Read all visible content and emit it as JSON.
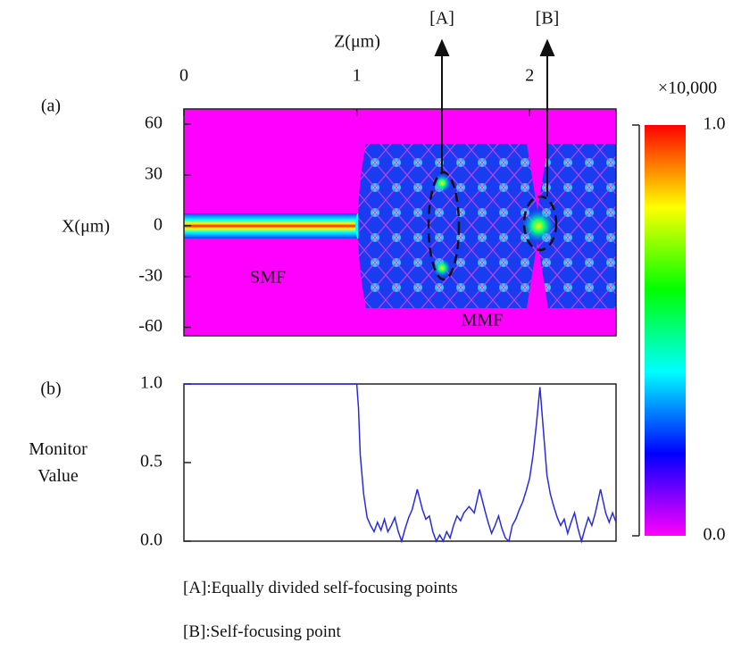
{
  "chart_data": [
    {
      "type": "heatmap",
      "panel_label": "(a)",
      "xlabel": "Z(μm)",
      "ylabel": "X(μm)",
      "xlim": [
        0,
        2.5
      ],
      "xticks": [
        0,
        1,
        2
      ],
      "ylim": [
        -65,
        69
      ],
      "yticks": [
        60,
        30,
        0,
        -30,
        -60
      ],
      "annotations": [
        "[A]",
        "[B]",
        "SMF",
        "MMF"
      ],
      "colorbar": {
        "label": "×10,000",
        "lim": [
          0,
          1
        ],
        "ticks": [
          {
            "value": 1,
            "label": "1.0"
          },
          {
            "value": 0,
            "label": "0.0"
          }
        ],
        "colors": [
          "#ff00ff",
          "#0000ff",
          "#00ffff",
          "#00ff00",
          "#ffff00",
          "#ff0000"
        ]
      }
    },
    {
      "type": "line",
      "panel_label": "(b)",
      "ylabel": "Monitor Value",
      "color": "#2a2ae0",
      "xlim": [
        0,
        2.5
      ],
      "ylim": [
        0,
        1
      ],
      "yticks": [
        {
          "value": 1,
          "label": "1.0"
        },
        0.5,
        {
          "value": 0,
          "label": "0.0"
        }
      ],
      "x": [
        0,
        1,
        1.01,
        1.02,
        1.04,
        1.06,
        1.08,
        1.1,
        1.12,
        1.14,
        1.16,
        1.18,
        1.2,
        1.22,
        1.24,
        1.26,
        1.28,
        1.3,
        1.32,
        1.35,
        1.38,
        1.4,
        1.42,
        1.44,
        1.46,
        1.48,
        1.5,
        1.52,
        1.54,
        1.56,
        1.58,
        1.6,
        1.62,
        1.65,
        1.68,
        1.71,
        1.74,
        1.76,
        1.78,
        1.8,
        1.82,
        1.84,
        1.86,
        1.88,
        1.9,
        1.92,
        1.94,
        1.96,
        1.98,
        2.0,
        2.02,
        2.04,
        2.06,
        2.08,
        2.1,
        2.12,
        2.14,
        2.16,
        2.18,
        2.2,
        2.22,
        2.24,
        2.26,
        2.28,
        2.3,
        2.32,
        2.34,
        2.36,
        2.38,
        2.41,
        2.44,
        2.46,
        2.48,
        2.5
      ],
      "values": [
        1,
        1,
        0.85,
        0.55,
        0.3,
        0.15,
        0.1,
        0.06,
        0.12,
        0.07,
        0.14,
        0.06,
        0.1,
        0.15,
        0.06,
        0,
        0.08,
        0.15,
        0.2,
        0.33,
        0.2,
        0.14,
        0.16,
        0.06,
        0,
        0.04,
        0,
        0.06,
        0.02,
        0.1,
        0.16,
        0.13,
        0.18,
        0.22,
        0.18,
        0.33,
        0.2,
        0.12,
        0.05,
        0.1,
        0.16,
        0.08,
        0.02,
        0,
        0.1,
        0.14,
        0.2,
        0.25,
        0.32,
        0.4,
        0.55,
        0.75,
        0.98,
        0.7,
        0.42,
        0.3,
        0.22,
        0.15,
        0.1,
        0.14,
        0.05,
        0.12,
        0.18,
        0.08,
        0,
        0.08,
        0.15,
        0.1,
        0.18,
        0.33,
        0.18,
        0.12,
        0.18,
        0.12
      ]
    }
  ],
  "notes": [
    "[A]:Equally divided self-focusing points",
    "[B]:Self-focusing point"
  ]
}
